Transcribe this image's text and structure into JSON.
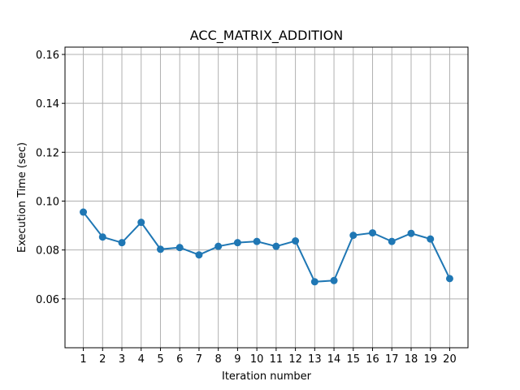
{
  "chart_data": {
    "type": "line",
    "title": "ACC_MATRIX_ADDITION",
    "xlabel": "Iteration number",
    "ylabel": "Execution Time (sec)",
    "x": [
      1,
      2,
      3,
      4,
      5,
      6,
      7,
      8,
      9,
      10,
      11,
      12,
      13,
      14,
      15,
      16,
      17,
      18,
      19,
      20
    ],
    "x_tick_labels": [
      "1",
      "2",
      "3",
      "4",
      "5",
      "6",
      "7",
      "8",
      "9",
      "10",
      "11",
      "12",
      "13",
      "14",
      "15",
      "16",
      "17",
      "18",
      "19",
      "20"
    ],
    "series": [
      {
        "values": [
          0.0955,
          0.0853,
          0.083,
          0.0913,
          0.0803,
          0.081,
          0.078,
          0.0815,
          0.083,
          0.0835,
          0.0815,
          0.0837,
          0.067,
          0.0675,
          0.086,
          0.087,
          0.0835,
          0.0868,
          0.0845,
          0.0683
        ],
        "color": "#1f77b4",
        "marker": "circle"
      }
    ],
    "xlim": [
      0.05,
      20.95
    ],
    "ylim": [
      0.04,
      0.163
    ],
    "y_ticks": [
      0.06,
      0.08,
      0.1,
      0.12,
      0.14,
      0.16
    ],
    "y_tick_labels": [
      "0.06",
      "0.08",
      "0.10",
      "0.12",
      "0.14",
      "0.16"
    ],
    "grid": true,
    "legend": "none"
  }
}
